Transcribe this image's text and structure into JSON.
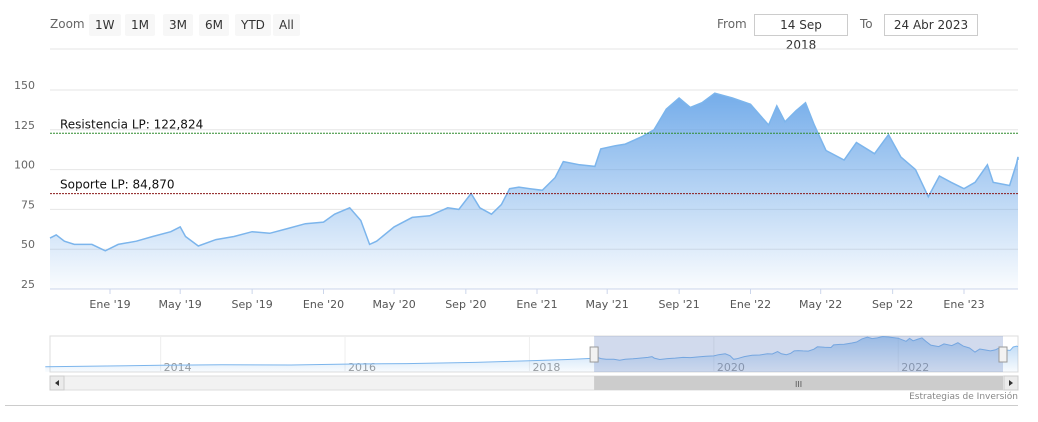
{
  "range_selector": {
    "zoom_label": "Zoom",
    "buttons": [
      "1W",
      "1M",
      "3M",
      "6M",
      "YTD",
      "All"
    ],
    "from_label": "From",
    "from_value": "14 Sep 2018",
    "to_label": "To",
    "to_value": "24 Abr 2023"
  },
  "credit": "Estrategias de Inversión",
  "colors": {
    "line": "#7cb5ec",
    "area_top": "#5c9ee6",
    "resistance": "#2e8b2e",
    "support": "#8b1a1a"
  },
  "chart_data": {
    "type": "area",
    "ylim": [
      25,
      150
    ],
    "yticks": [
      25,
      50,
      75,
      100,
      125,
      150
    ],
    "xticks": [
      {
        "date": "2019-01-01",
        "label": "Ene '19"
      },
      {
        "date": "2019-05-01",
        "label": "May '19"
      },
      {
        "date": "2019-09-01",
        "label": "Sep '19"
      },
      {
        "date": "2020-01-01",
        "label": "Ene '20"
      },
      {
        "date": "2020-05-01",
        "label": "May '20"
      },
      {
        "date": "2020-09-01",
        "label": "Sep '20"
      },
      {
        "date": "2021-01-01",
        "label": "Ene '21"
      },
      {
        "date": "2021-05-01",
        "label": "May '21"
      },
      {
        "date": "2021-09-01",
        "label": "Sep '21"
      },
      {
        "date": "2022-01-01",
        "label": "Ene '22"
      },
      {
        "date": "2022-05-01",
        "label": "May '22"
      },
      {
        "date": "2022-09-01",
        "label": "Sep '22"
      },
      {
        "date": "2023-01-01",
        "label": "Ene '23"
      }
    ],
    "grid": true,
    "plot_lines": [
      {
        "label": "Resistencia LP: 122,824",
        "value": 122.824,
        "color": "#2e8b2e"
      },
      {
        "label": "Soporte LP: 84,870",
        "value": 84.87,
        "color": "#8b1a1a"
      }
    ],
    "series": [
      [
        "2018-09-14",
        57
      ],
      [
        "2018-10-01",
        59
      ],
      [
        "2018-10-15",
        55
      ],
      [
        "2018-11-01",
        53
      ],
      [
        "2018-12-01",
        53
      ],
      [
        "2018-12-24",
        49
      ],
      [
        "2019-01-15",
        53
      ],
      [
        "2019-02-15",
        55
      ],
      [
        "2019-03-15",
        58
      ],
      [
        "2019-04-15",
        61
      ],
      [
        "2019-05-01",
        64
      ],
      [
        "2019-05-10",
        58
      ],
      [
        "2019-06-01",
        52
      ],
      [
        "2019-07-01",
        56
      ],
      [
        "2019-08-01",
        58
      ],
      [
        "2019-09-01",
        61
      ],
      [
        "2019-10-01",
        60
      ],
      [
        "2019-11-01",
        63
      ],
      [
        "2019-12-01",
        66
      ],
      [
        "2020-01-01",
        67
      ],
      [
        "2020-01-20",
        72
      ],
      [
        "2020-02-15",
        76
      ],
      [
        "2020-03-05",
        68
      ],
      [
        "2020-03-20",
        53
      ],
      [
        "2020-04-01",
        55
      ],
      [
        "2020-05-01",
        64
      ],
      [
        "2020-06-01",
        70
      ],
      [
        "2020-07-01",
        71
      ],
      [
        "2020-08-01",
        76
      ],
      [
        "2020-08-20",
        75
      ],
      [
        "2020-09-10",
        85
      ],
      [
        "2020-09-25",
        76
      ],
      [
        "2020-10-15",
        72
      ],
      [
        "2020-11-01",
        78
      ],
      [
        "2020-11-15",
        88
      ],
      [
        "2020-12-01",
        89
      ],
      [
        "2020-12-20",
        88
      ],
      [
        "2021-01-10",
        87
      ],
      [
        "2021-02-01",
        95
      ],
      [
        "2021-02-15",
        105
      ],
      [
        "2021-03-15",
        103
      ],
      [
        "2021-04-10",
        102
      ],
      [
        "2021-04-20",
        113
      ],
      [
        "2021-05-15",
        115
      ],
      [
        "2021-06-01",
        116
      ],
      [
        "2021-07-01",
        121
      ],
      [
        "2021-07-20",
        125
      ],
      [
        "2021-08-10",
        138
      ],
      [
        "2021-09-01",
        145
      ],
      [
        "2021-09-20",
        139
      ],
      [
        "2021-10-10",
        142
      ],
      [
        "2021-11-01",
        148
      ],
      [
        "2021-12-01",
        145
      ],
      [
        "2022-01-01",
        141
      ],
      [
        "2022-02-01",
        128
      ],
      [
        "2022-02-15",
        140
      ],
      [
        "2022-03-01",
        130
      ],
      [
        "2022-03-20",
        137
      ],
      [
        "2022-04-05",
        142
      ],
      [
        "2022-04-20",
        128
      ],
      [
        "2022-05-10",
        112
      ],
      [
        "2022-06-10",
        106
      ],
      [
        "2022-07-01",
        117
      ],
      [
        "2022-08-01",
        110
      ],
      [
        "2022-08-25",
        122
      ],
      [
        "2022-09-15",
        108
      ],
      [
        "2022-10-10",
        100
      ],
      [
        "2022-11-01",
        83
      ],
      [
        "2022-11-20",
        96
      ],
      [
        "2022-12-10",
        92
      ],
      [
        "2023-01-01",
        88
      ],
      [
        "2023-01-20",
        92
      ],
      [
        "2023-02-10",
        103
      ],
      [
        "2023-02-20",
        92
      ],
      [
        "2023-03-20",
        90
      ],
      [
        "2023-04-01",
        104
      ],
      [
        "2023-04-15",
        108
      ],
      [
        "2023-04-24",
        106
      ]
    ],
    "navigator": {
      "xticks": [
        "2014",
        "2016",
        "2018",
        "2020",
        "2022"
      ],
      "selected": [
        "2018-09-14",
        "2023-04-24"
      ],
      "early_series": [
        [
          "2012-10-01",
          22
        ],
        [
          "2013-06-01",
          25
        ],
        [
          "2014-01-01",
          28
        ],
        [
          "2014-09-01",
          30
        ],
        [
          "2015-06-01",
          29
        ],
        [
          "2016-01-01",
          33
        ],
        [
          "2016-09-01",
          35
        ],
        [
          "2017-06-01",
          40
        ],
        [
          "2018-01-01",
          47
        ],
        [
          "2018-06-01",
          52
        ]
      ]
    }
  }
}
